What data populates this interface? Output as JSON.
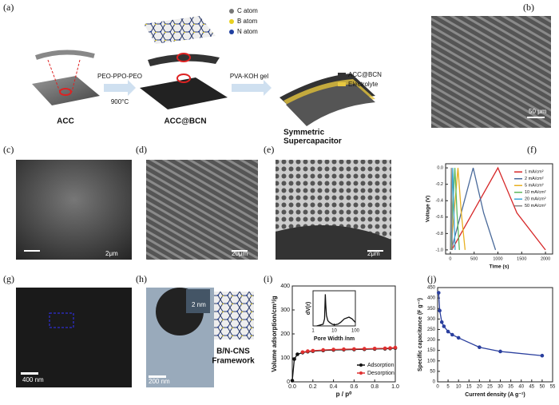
{
  "panels": [
    "(a)",
    "(b)",
    "(c)",
    "(d)",
    "(e)",
    "(f)",
    "(g)",
    "(h)",
    "(i)",
    "(j)"
  ],
  "schematic": {
    "steps": [
      "ACC",
      "ACC@BCN",
      "Symmetric",
      "Supercapacitor"
    ],
    "arrow1_top": "PEO-PPO-PEO",
    "arrow1_bottom": "900°C",
    "arrow2": "PVA-KOH gel",
    "atoms": [
      "C atom",
      "B atom",
      "N atom"
    ],
    "layers": [
      "ACC@BCN",
      "Electrolyte"
    ]
  },
  "scale_bars": {
    "b": "50 μm",
    "c": "2μm",
    "d": "20μm",
    "e": "2μm",
    "g": "400 nm",
    "h": "200 nm",
    "h_inset": "2 nm"
  },
  "framework_label": [
    "B/N-CNS",
    "Framework"
  ],
  "chart_data": [
    {
      "type": "line",
      "xlabel": "Time (s)",
      "ylabel": "Voltage (V)",
      "xlim": [
        -100,
        2150
      ],
      "ylim": [
        -1.05,
        0.05
      ],
      "xticks": [
        0,
        500,
        1000,
        1500,
        2000
      ],
      "yticks": [
        {
          "value": 0,
          "label": "0.0"
        },
        -0.2,
        -0.4,
        -0.6,
        -0.8,
        {
          "value": -1,
          "label": "-1.0"
        }
      ],
      "legend": "upper right",
      "series": [
        {
          "name": "1 mA/cm²",
          "color": "#d62728",
          "x": [
            30,
            1000,
            1400,
            2000
          ],
          "values": [
            -1,
            0,
            -0.55,
            -1
          ]
        },
        {
          "name": "2 mA/cm²",
          "color": "#4a6a9a",
          "x": [
            20,
            480,
            700,
            950
          ],
          "values": [
            -1,
            0,
            -0.55,
            -1
          ]
        },
        {
          "name": "5 mA/cm²",
          "color": "#e8b020",
          "x": [
            10,
            160,
            230,
            310
          ],
          "values": [
            -1,
            0,
            -0.55,
            -1
          ]
        },
        {
          "name": "10 mA/cm²",
          "color": "#5cb85c",
          "x": [
            5,
            95,
            140,
            190
          ],
          "values": [
            -1,
            0,
            -0.55,
            -1
          ]
        },
        {
          "name": "20 mA/cm²",
          "color": "#3fa7d6",
          "x": [
            3,
            50,
            75,
            100
          ],
          "values": [
            -1,
            0,
            -0.55,
            -1
          ]
        },
        {
          "name": "50 mA/cm²",
          "color": "#888888",
          "x": [
            1,
            20,
            30,
            40
          ],
          "values": [
            -1,
            0,
            -0.55,
            -1
          ]
        }
      ]
    },
    {
      "type": "line",
      "xlabel": "p / p⁰",
      "ylabel": "Volume adsorption/cm³/g",
      "xlim": [
        0,
        1
      ],
      "ylim": [
        0,
        400
      ],
      "xticks": [
        {
          "value": 0,
          "label": "0.0"
        },
        0.2,
        0.4,
        0.6,
        0.8,
        {
          "value": 1,
          "label": "1.0"
        }
      ],
      "yticks": [
        0,
        100,
        200,
        300,
        400
      ],
      "legend": "lower right",
      "markers": true,
      "series": [
        {
          "name": "Adsorption",
          "color": "#111111",
          "x": [
            0,
            0.02,
            0.05,
            0.1,
            0.15,
            0.2,
            0.3,
            0.4,
            0.5,
            0.6,
            0.7,
            0.8,
            0.9,
            0.95,
            1.0
          ],
          "values": [
            5,
            95,
            115,
            122,
            126,
            128,
            131,
            133,
            134,
            135,
            136,
            137,
            138,
            139,
            141
          ]
        },
        {
          "name": "Desorption",
          "color": "#e03030",
          "x": [
            1.0,
            0.95,
            0.9,
            0.8,
            0.7,
            0.6,
            0.5,
            0.4,
            0.3,
            0.2,
            0.15,
            0.1
          ],
          "values": [
            143,
            141,
            140,
            139,
            138,
            137,
            136,
            135,
            133,
            130,
            128,
            124
          ]
        }
      ]
    },
    {
      "type": "line",
      "xlabel": "Pore Width /nm",
      "ylabel": "dV(r)",
      "xscale": "log",
      "xlim": [
        1,
        100
      ],
      "ylim": [
        0,
        1
      ],
      "xticks": [
        1,
        10,
        100
      ],
      "series": [
        {
          "color": "#111111",
          "x": [
            1.5,
            2,
            3,
            3.5,
            3.8,
            4,
            4.3,
            5,
            6,
            8,
            10,
            15,
            20,
            30,
            50,
            70,
            100
          ],
          "values": [
            0,
            0.02,
            0.05,
            0.2,
            0.9,
            0.6,
            0.3,
            0.15,
            0.1,
            0.05,
            0.03,
            0.05,
            0.1,
            0.2,
            0.25,
            0.2,
            0.1
          ]
        }
      ]
    },
    {
      "type": "line",
      "xlabel": "Current density (A g⁻¹)",
      "ylabel": "Specific capacitance (F g⁻¹)",
      "xlim": [
        0,
        55
      ],
      "ylim": [
        0,
        450
      ],
      "xticks": [
        0,
        5,
        10,
        15,
        20,
        25,
        30,
        35,
        40,
        45,
        50,
        55
      ],
      "yticks": [
        0,
        50,
        100,
        150,
        200,
        250,
        300,
        350,
        400,
        450
      ],
      "markers": true,
      "series": [
        {
          "color": "#2a3f9e",
          "x": [
            0.5,
            1,
            2,
            3,
            5,
            7,
            10,
            20,
            30,
            50
          ],
          "values": [
            425,
            340,
            285,
            265,
            240,
            225,
            210,
            165,
            145,
            125
          ]
        }
      ]
    }
  ]
}
